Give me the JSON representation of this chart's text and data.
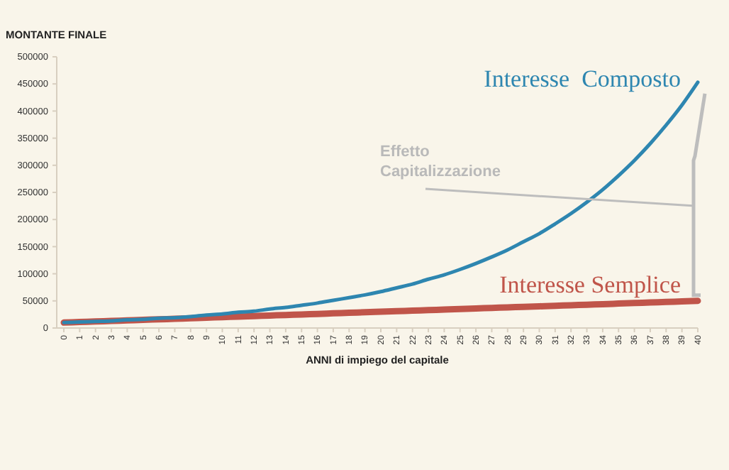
{
  "chart_data": {
    "type": "line",
    "ylabel": "MONTANTE FINALE",
    "xlabel": "ANNI di impiego del capitale",
    "categories": [
      "0",
      "1",
      "2",
      "3",
      "4",
      "5",
      "6",
      "7",
      "8",
      "9",
      "10",
      "11",
      "12",
      "13",
      "14",
      "15",
      "16",
      "17",
      "18",
      "19",
      "20",
      "21",
      "22",
      "23",
      "24",
      "25",
      "26",
      "27",
      "28",
      "29",
      "30",
      "31",
      "32",
      "33",
      "34",
      "35",
      "36",
      "37",
      "38",
      "39",
      "40"
    ],
    "series": [
      {
        "name": "Interesse  Composto",
        "color": "#2e86b0",
        "values": [
          10000,
          11000,
          12000,
          13000,
          15000,
          16000,
          18000,
          19000,
          21000,
          24000,
          26000,
          29000,
          31000,
          35000,
          38000,
          42000,
          46000,
          51000,
          56000,
          61000,
          67000,
          74000,
          81000,
          90000,
          98000,
          108000,
          119000,
          131000,
          144000,
          159000,
          174000,
          192000,
          211000,
          232000,
          255000,
          281000,
          309000,
          340000,
          374000,
          411000,
          453000
        ]
      },
      {
        "name": "Interesse Semplice",
        "color": "#c0554a",
        "values": [
          10000,
          11000,
          12000,
          13000,
          14000,
          15000,
          16000,
          17000,
          18000,
          19000,
          20000,
          21000,
          22000,
          23000,
          24000,
          25000,
          26000,
          27000,
          28000,
          29000,
          30000,
          31000,
          32000,
          33000,
          34000,
          35000,
          36000,
          37000,
          38000,
          39000,
          40000,
          41000,
          42000,
          43000,
          44000,
          45000,
          46000,
          47000,
          48000,
          49000,
          50000
        ]
      }
    ],
    "ylim": [
      0,
      500000
    ],
    "yticks": [
      0,
      50000,
      100000,
      150000,
      200000,
      250000,
      300000,
      350000,
      400000,
      450000,
      500000
    ],
    "grid": false,
    "legend": false,
    "marker": "none",
    "line_style": "solid",
    "annotations": [
      "Effetto\nCapitalizzazione"
    ]
  }
}
